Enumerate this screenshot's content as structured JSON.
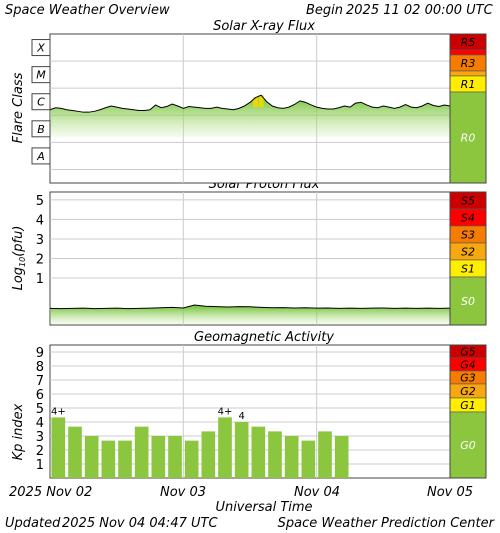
{
  "header": {
    "title": "Space Weather Overview",
    "begin_label": "Begin",
    "begin_value": "2025 11 02 00:00 UTC"
  },
  "footer": {
    "updated_label": "Updated",
    "updated_value": "2025 Nov 04 04:47 UTC",
    "credit": "Space Weather Prediction Center"
  },
  "colors": {
    "bar_green": "#8cc63f",
    "scale_green": "#8cc63f",
    "scale_yellow": "#ffee00",
    "scale_orange": "#f7a70f",
    "scale_dark_orange": "#f57c00",
    "scale_red": "#ff0000",
    "scale_dark_red": "#cc0000",
    "grid": "#cccccc"
  },
  "chart_data": [
    {
      "type": "area",
      "title": "Solar X-ray Flux",
      "ylabel": "Flare Class",
      "y_scale": "log",
      "class_labels": [
        "X",
        "M",
        "C",
        "B",
        "A"
      ],
      "ylim_class": [
        "A",
        "X+"
      ],
      "x_unit": "hours since 2025-11-02 00:00 UTC",
      "x": [
        0,
        1,
        2,
        3,
        4,
        5,
        6,
        7,
        8,
        9,
        10,
        11,
        12,
        13,
        14,
        15,
        16,
        17,
        18,
        19,
        20,
        21,
        22,
        23,
        24,
        25,
        26,
        27,
        28,
        29,
        30,
        31,
        32,
        33,
        34,
        35,
        36,
        37,
        38,
        39,
        40,
        41,
        42,
        43,
        44,
        45,
        46,
        47,
        48,
        49,
        50,
        51,
        52,
        53,
        54,
        55,
        56,
        57,
        58,
        59,
        60,
        61,
        62,
        63,
        64,
        65,
        66,
        67,
        68,
        69,
        70,
        71,
        72,
        73,
        74,
        75,
        76
      ],
      "flux_class": [
        "C1.6",
        "C1.9",
        "C1.8",
        "C1.6",
        "C1.5",
        "C1.4",
        "C1.3",
        "C1.3",
        "C1.4",
        "C1.6",
        "C1.9",
        "C2.2",
        "C2.0",
        "C1.8",
        "C1.7",
        "C1.6",
        "C1.5",
        "C1.5",
        "C1.6",
        "C2.4",
        "C1.9",
        "C2.1",
        "C2.6",
        "C2.2",
        "C1.8",
        "C2.1",
        "C2.0",
        "C1.9",
        "C1.8",
        "C1.8",
        "C2.0",
        "C1.8",
        "C1.7",
        "C1.6",
        "C1.8",
        "C2.2",
        "C3.0",
        "C4.5",
        "C5.5",
        "C3.2",
        "C2.2",
        "C1.9",
        "C1.8",
        "C2.0",
        "C2.5",
        "C3.4",
        "C3.0",
        "C2.4",
        "C2.0",
        "C1.8",
        "C1.7",
        "C1.7",
        "C1.9",
        "C2.2",
        "C2.0",
        "C2.8",
        "C3.0",
        "C2.4",
        "C2.0",
        "C1.9",
        "C2.2",
        "C2.0",
        "C1.8",
        "C2.0",
        "C2.5",
        "C2.0",
        "C1.9",
        "C2.2",
        "C2.8",
        "C2.3",
        "C2.1",
        "C2.4",
        "C2.2",
        "C2.0",
        "C1.9",
        "C2.0",
        "C2.0"
      ],
      "scale_labels": [
        "R5",
        "R3",
        "R1",
        "R0"
      ]
    },
    {
      "type": "area",
      "title": "Solar Proton Flux",
      "ylabel": "Log10(pfu)",
      "ylabel_main": "Log",
      "ylabel_sub": "10",
      "ylabel_tail": "(pfu)",
      "tick_labels": [
        "5",
        "4",
        "3",
        "2",
        "1"
      ],
      "ylim": [
        -1.4,
        5.4
      ],
      "x_unit": "hours since 2025-11-02 00:00 UTC",
      "x": [
        0,
        2,
        4,
        6,
        8,
        10,
        12,
        14,
        16,
        18,
        20,
        22,
        24,
        26,
        28,
        30,
        32,
        34,
        36,
        38,
        40,
        42,
        44,
        46,
        48,
        50,
        52,
        54,
        56,
        58,
        60,
        62,
        64,
        66,
        68,
        70,
        72,
        74,
        76
      ],
      "values": [
        -0.55,
        -0.56,
        -0.55,
        -0.54,
        -0.56,
        -0.55,
        -0.54,
        -0.56,
        -0.55,
        -0.54,
        -0.52,
        -0.5,
        -0.53,
        -0.38,
        -0.44,
        -0.46,
        -0.48,
        -0.46,
        -0.47,
        -0.5,
        -0.52,
        -0.51,
        -0.53,
        -0.52,
        -0.54,
        -0.53,
        -0.55,
        -0.54,
        -0.55,
        -0.54,
        -0.53,
        -0.55,
        -0.54,
        -0.55,
        -0.54,
        -0.55,
        -0.54,
        -0.53,
        -0.52
      ],
      "scale_labels": [
        "S5",
        "S4",
        "S3",
        "S2",
        "S1",
        "S0"
      ]
    },
    {
      "type": "bar",
      "title": "Geomagnetic Activity",
      "ylabel": "Kp index",
      "tick_labels": [
        "9",
        "8",
        "7",
        "6",
        "5",
        "4",
        "3",
        "2",
        "1"
      ],
      "ylim": [
        0,
        9.5
      ],
      "x_unit": "hours since 2025-11-02 00:00 UTC",
      "bar_start_hours": [
        0,
        3,
        6,
        9,
        12,
        15,
        18,
        21,
        24,
        27,
        30,
        33,
        36,
        39,
        42,
        45,
        48,
        51,
        54,
        57,
        60,
        63,
        66,
        69
      ],
      "values": [
        4.33,
        3.67,
        3.0,
        2.67,
        2.67,
        3.67,
        3.0,
        3.0,
        2.67,
        3.33,
        4.33,
        4.0,
        3.67,
        3.33,
        3.0,
        2.67,
        3.33,
        3.0,
        null,
        null,
        null,
        null,
        null,
        null
      ],
      "bar_labels": [
        "4+",
        null,
        null,
        null,
        null,
        null,
        null,
        null,
        null,
        null,
        "4+",
        "4",
        null,
        null,
        null,
        null,
        null,
        null,
        null,
        null,
        null,
        null,
        null,
        null
      ],
      "scale_labels": [
        "G5",
        "G4",
        "G3",
        "G2",
        "G1",
        "G0"
      ]
    }
  ],
  "x_axis": {
    "label": "Universal Time",
    "tick_labels": [
      "2025 Nov 02",
      "Nov 03",
      "Nov 04",
      "Nov 05"
    ],
    "range_hours": [
      0,
      72
    ]
  }
}
